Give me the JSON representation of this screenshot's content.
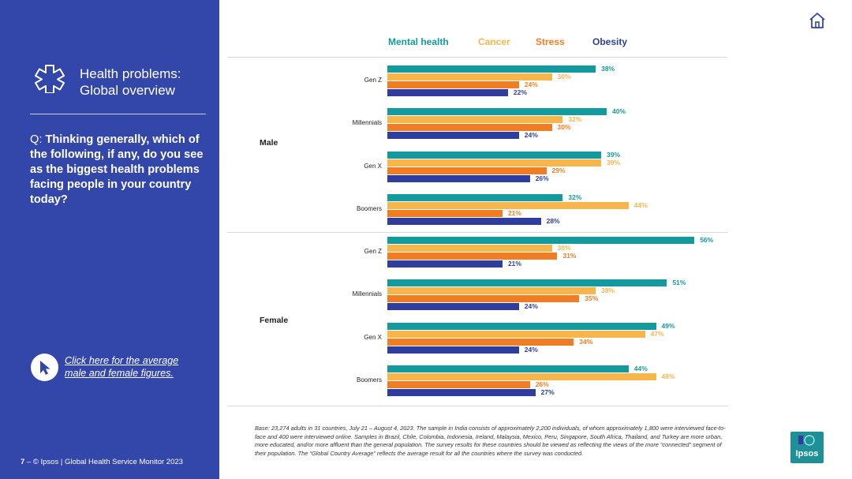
{
  "sidebar": {
    "title_line1": "Health problems:",
    "title_line2": "Global overview",
    "question_prefix": "Q: ",
    "question_bold": "Thinking generally, which of the following, if any, do you see as the biggest health problems facing people in your country today?",
    "cta_link": "Click here for the average male and female figures.",
    "footer_page": "7",
    "footer_text": " – © Ipsos | Global Health Service Monitor 2023"
  },
  "logo": {
    "text": "Ipsos"
  },
  "base_note": "Base: 23,274 adults in 31 countries, July 21 – August 4, 2023. The sample in India consists of approximately 2,200 individuals, of whom approximately 1,800 were interviewed face-to-face and 400 were interviewed online. Samples in Brazil, Chile, Colombia, Indonesia, Ireland, Malaysia, Mexico, Peru, Singapore, South Africa, Thailand, and Turkey are more urban, more educated, and/or more affluent than the general population. The survey results for these countries should be viewed as reflecting the views of the more “connected” segment of their population. The “Global Country Average” reflects the average result for all the countries where the survey was conducted.",
  "chart_data": {
    "type": "bar",
    "orientation": "horizontal",
    "title": "",
    "unit": "%",
    "xlim": [
      0,
      60
    ],
    "series": [
      {
        "name": "Mental health",
        "color": "#139a9e"
      },
      {
        "name": "Cancer",
        "color": "#f6b64c"
      },
      {
        "name": "Stress",
        "color": "#f07d24"
      },
      {
        "name": "Obesity",
        "color": "#2f3e9e"
      }
    ],
    "groups": [
      {
        "label": "Male",
        "categories": [
          {
            "label": "Gen Z",
            "values": [
              38,
              30,
              24,
              22
            ]
          },
          {
            "label": "Millennials",
            "values": [
              40,
              32,
              30,
              24
            ]
          },
          {
            "label": "Gen X",
            "values": [
              39,
              39,
              29,
              26
            ]
          },
          {
            "label": "Boomers",
            "values": [
              32,
              44,
              21,
              28
            ]
          }
        ]
      },
      {
        "label": "Female",
        "categories": [
          {
            "label": "Gen Z",
            "values": [
              56,
              30,
              31,
              21
            ]
          },
          {
            "label": "Millennials",
            "values": [
              51,
              38,
              35,
              24
            ]
          },
          {
            "label": "Gen X",
            "values": [
              49,
              47,
              34,
              24
            ]
          },
          {
            "label": "Boomers",
            "values": [
              44,
              49,
              26,
              27
            ]
          }
        ]
      }
    ]
  }
}
